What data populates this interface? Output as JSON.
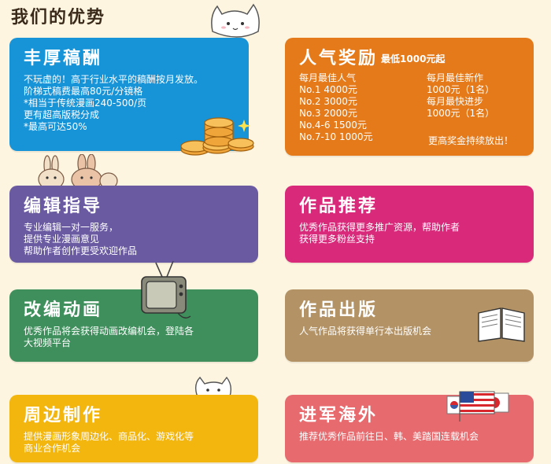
{
  "heading": "我们的优势",
  "cards": {
    "royalty": {
      "title": "丰厚稿酬",
      "lines": [
        "不玩虚的！高于行业水平的稿酬按月发放。",
        "阶梯式稿费最高80元/分镜格",
        "*相当于传统漫画240-500/页",
        "更有超高版税分成",
        "*最高可达50%"
      ]
    },
    "popularity": {
      "title": "人气奖励",
      "subtitle": "最低1000元起",
      "left_lines": [
        "每月最佳人气",
        "No.1 4000元",
        "No.2 3000元",
        "No.3 2000元",
        "No.4-6 1500元",
        "No.7-10 1000元"
      ],
      "right_lines": [
        "每月最佳新作",
        "1000元（1名）",
        "每月最快进步",
        "1000元（1名）"
      ],
      "footer": "更高奖金持续放出！"
    },
    "editor": {
      "title": "编辑指导",
      "lines": [
        "专业编辑一对一服务，",
        "提供专业漫画意见",
        "帮助作者创作更受欢迎作品"
      ]
    },
    "recommend": {
      "title": "作品推荐",
      "lines": [
        "优秀作品获得更多推广资源，帮助作者",
        "获得更多粉丝支持"
      ]
    },
    "animation": {
      "title": "改编动画",
      "lines": [
        "优秀作品将会获得动画改编机会，登陆各",
        "大视频平台"
      ]
    },
    "publish": {
      "title": "作品出版",
      "lines": [
        "人气作品将获得单行本出版机会"
      ]
    },
    "merch": {
      "title": "周边制作",
      "lines": [
        "提供漫画形象周边化、商品化、游戏化等",
        "商业合作机会"
      ]
    },
    "overseas": {
      "title": "进军海外",
      "lines": [
        "推荐优秀作品前往日、韩、美踏国连载机会"
      ]
    }
  },
  "colors": {
    "royalty": "#1793d8",
    "popularity": "#e57a1a",
    "editor": "#6a5aa2",
    "recommend": "#d9297a",
    "animation": "#3f8f5d",
    "publish": "#b39366",
    "merch": "#f3b60f",
    "overseas": "#e66a6e"
  },
  "icons": [
    "cat-mascot-icon",
    "coin-stack-icon",
    "bunny-pair-icon",
    "retro-tv-icon",
    "open-book-icon",
    "cat-pair-icon",
    "flags-icon"
  ]
}
